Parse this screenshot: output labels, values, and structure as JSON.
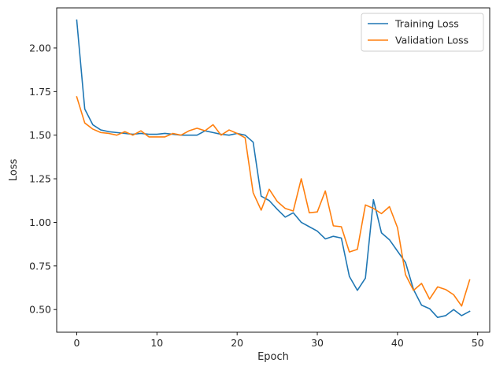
{
  "chart_data": {
    "type": "line",
    "title": "",
    "xlabel": "Epoch",
    "ylabel": "Loss",
    "xlim": [
      -2.5,
      51.5
    ],
    "ylim": [
      0.37,
      2.23
    ],
    "xticks": [
      0,
      10,
      20,
      30,
      40,
      50
    ],
    "yticks": [
      0.5,
      0.75,
      1.0,
      1.25,
      1.5,
      1.75,
      2.0
    ],
    "ytick_labels": [
      "0.50",
      "0.75",
      "1.00",
      "1.25",
      "1.50",
      "1.75",
      "2.00"
    ],
    "grid": false,
    "legend_position": "upper-right",
    "x": [
      0,
      1,
      2,
      3,
      4,
      5,
      6,
      7,
      8,
      9,
      10,
      11,
      12,
      13,
      14,
      15,
      16,
      17,
      18,
      19,
      20,
      21,
      22,
      23,
      24,
      25,
      26,
      27,
      28,
      29,
      30,
      31,
      32,
      33,
      34,
      35,
      36,
      37,
      38,
      39,
      40,
      41,
      42,
      43,
      44,
      45,
      46,
      47,
      48,
      49
    ],
    "series": [
      {
        "name": "Training Loss",
        "color": "#1f77b4",
        "values": [
          2.16,
          1.65,
          1.56,
          1.53,
          1.52,
          1.515,
          1.51,
          1.505,
          1.51,
          1.505,
          1.505,
          1.51,
          1.505,
          1.5,
          1.5,
          1.5,
          1.525,
          1.515,
          1.505,
          1.5,
          1.51,
          1.5,
          1.46,
          1.15,
          1.125,
          1.075,
          1.03,
          1.055,
          1.0,
          0.975,
          0.95,
          0.905,
          0.92,
          0.91,
          0.69,
          0.61,
          0.68,
          1.13,
          0.94,
          0.9,
          0.835,
          0.77,
          0.615,
          0.525,
          0.505,
          0.455,
          0.465,
          0.5,
          0.465,
          0.49
        ]
      },
      {
        "name": "Validation Loss",
        "color": "#ff7f0e",
        "values": [
          1.72,
          1.57,
          1.535,
          1.515,
          1.51,
          1.5,
          1.52,
          1.5,
          1.525,
          1.49,
          1.49,
          1.49,
          1.51,
          1.5,
          1.525,
          1.54,
          1.525,
          1.56,
          1.5,
          1.53,
          1.51,
          1.485,
          1.17,
          1.07,
          1.19,
          1.12,
          1.08,
          1.065,
          1.25,
          1.055,
          1.06,
          1.18,
          0.98,
          0.975,
          0.83,
          0.845,
          1.1,
          1.08,
          1.05,
          1.09,
          0.97,
          0.7,
          0.61,
          0.65,
          0.56,
          0.63,
          0.615,
          0.585,
          0.52,
          0.67
        ]
      }
    ]
  }
}
